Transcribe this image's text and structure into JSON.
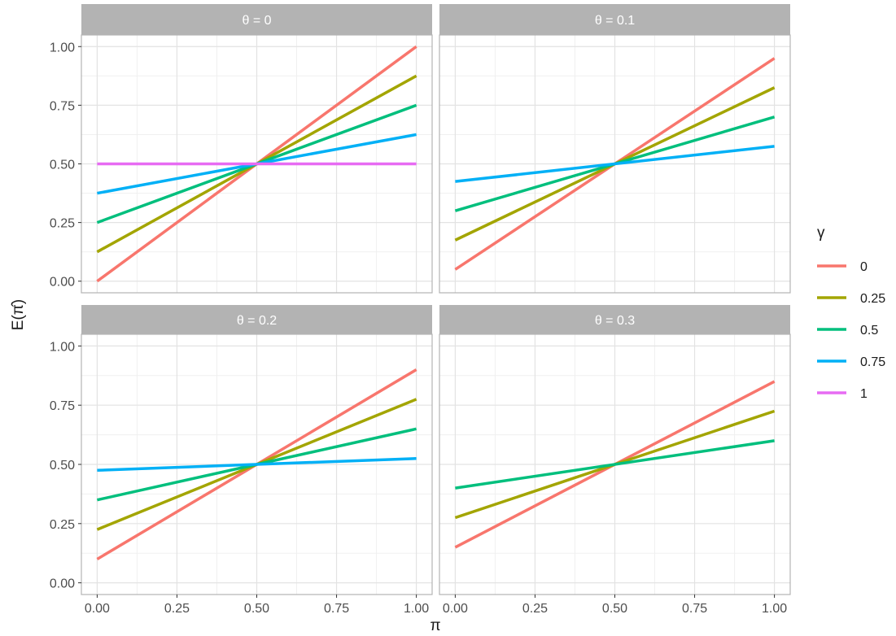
{
  "chart_data": {
    "type": "line",
    "xlabel": "π",
    "ylabel": "E(π̂)",
    "xlim": [
      0,
      1
    ],
    "ylim": [
      0,
      1
    ],
    "x_ticks": [
      "0.00",
      "0.25",
      "0.50",
      "0.75",
      "1.00"
    ],
    "y_ticks": [
      "0.00",
      "0.25",
      "0.50",
      "0.75",
      "1.00"
    ],
    "grid": true,
    "legend_position": "right",
    "legend": {
      "title": "γ",
      "items": [
        {
          "label": "0",
          "color": "#F8766D"
        },
        {
          "label": "0.25",
          "color": "#A3A500"
        },
        {
          "label": "0.5",
          "color": "#00BF7D"
        },
        {
          "label": "0.75",
          "color": "#00B0F6"
        },
        {
          "label": "1",
          "color": "#E76BF3"
        }
      ]
    },
    "panels": [
      {
        "strip": "θ = 0",
        "series": [
          {
            "name": "0",
            "x": [
              0,
              1
            ],
            "y": [
              0.0,
              1.0
            ]
          },
          {
            "name": "0.25",
            "x": [
              0,
              1
            ],
            "y": [
              0.125,
              0.875
            ]
          },
          {
            "name": "0.5",
            "x": [
              0,
              1
            ],
            "y": [
              0.25,
              0.75
            ]
          },
          {
            "name": "0.75",
            "x": [
              0,
              1
            ],
            "y": [
              0.375,
              0.625
            ]
          },
          {
            "name": "1",
            "x": [
              0,
              1
            ],
            "y": [
              0.5,
              0.5
            ]
          }
        ]
      },
      {
        "strip": "θ = 0.1",
        "series": [
          {
            "name": "0",
            "x": [
              0,
              1
            ],
            "y": [
              0.05,
              0.95
            ]
          },
          {
            "name": "0.25",
            "x": [
              0,
              1
            ],
            "y": [
              0.175,
              0.825
            ]
          },
          {
            "name": "0.5",
            "x": [
              0,
              1
            ],
            "y": [
              0.3,
              0.7
            ]
          },
          {
            "name": "0.75",
            "x": [
              0,
              1
            ],
            "y": [
              0.425,
              0.575
            ]
          }
        ]
      },
      {
        "strip": "θ = 0.2",
        "series": [
          {
            "name": "0",
            "x": [
              0,
              1
            ],
            "y": [
              0.1,
              0.9
            ]
          },
          {
            "name": "0.25",
            "x": [
              0,
              1
            ],
            "y": [
              0.225,
              0.775
            ]
          },
          {
            "name": "0.5",
            "x": [
              0,
              1
            ],
            "y": [
              0.35,
              0.65
            ]
          },
          {
            "name": "0.75",
            "x": [
              0,
              1
            ],
            "y": [
              0.475,
              0.525
            ]
          }
        ]
      },
      {
        "strip": "θ = 0.3",
        "series": [
          {
            "name": "0",
            "x": [
              0,
              1
            ],
            "y": [
              0.15,
              0.85
            ]
          },
          {
            "name": "0.25",
            "x": [
              0,
              1
            ],
            "y": [
              0.275,
              0.725
            ]
          },
          {
            "name": "0.5",
            "x": [
              0,
              1
            ],
            "y": [
              0.4,
              0.6
            ]
          }
        ]
      }
    ]
  }
}
